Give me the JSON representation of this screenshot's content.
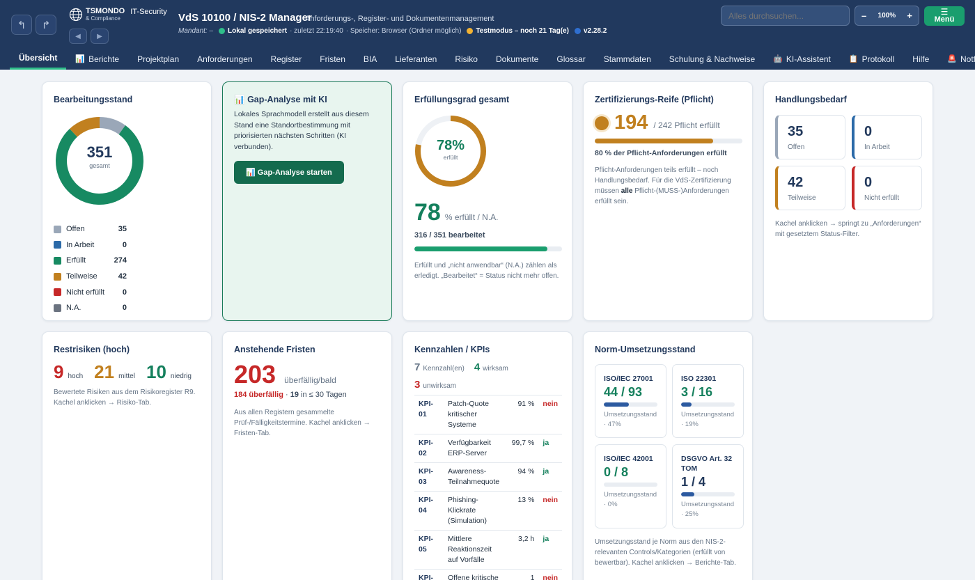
{
  "header": {
    "brand": "TSMONDO",
    "brand_sub": "& Compliance",
    "brand_suffix": "IT-Security",
    "app_title": "VdS 10100 / NIS-2 Manager",
    "app_subtitle": "Anforderungs-, Register- und Dokumentenmanagement",
    "mandant": "Mandant: –",
    "status_saved": "Lokal gespeichert",
    "status_last": "· zuletzt 22:19:40",
    "status_storage": "· Speicher: Browser (Ordner möglich)",
    "status_test": "Testmodus – noch 21 Tag(e)",
    "version": "v2.28.2",
    "search_placeholder": "Alles durchsuchen...",
    "zoom": "100%",
    "zoom_minus": "–",
    "zoom_plus": "+",
    "menu_icon": "☰",
    "menu_label": "Menü",
    "colors": {
      "bg": "#21395e",
      "saved": "#2fbe8a",
      "test": "#f2b233",
      "version": "#2f6fd0"
    }
  },
  "tabs": [
    {
      "label": "Übersicht",
      "icon": ""
    },
    {
      "label": "Berichte",
      "icon": "chart-icon"
    },
    {
      "label": "Projektplan",
      "icon": ""
    },
    {
      "label": "Anforderungen",
      "icon": ""
    },
    {
      "label": "Register",
      "icon": ""
    },
    {
      "label": "Fristen",
      "icon": ""
    },
    {
      "label": "BIA",
      "icon": ""
    },
    {
      "label": "Lieferanten",
      "icon": ""
    },
    {
      "label": "Risiko",
      "icon": ""
    },
    {
      "label": "Dokumente",
      "icon": ""
    },
    {
      "label": "Glossar",
      "icon": ""
    },
    {
      "label": "Stammdaten",
      "icon": ""
    },
    {
      "label": "Schulung & Nachweise",
      "icon": ""
    },
    {
      "label": "KI-Assistent",
      "icon": "robot-icon"
    },
    {
      "label": "Protokoll",
      "icon": "clipboard-icon"
    },
    {
      "label": "Hilfe",
      "icon": ""
    },
    {
      "label": "Notfall",
      "icon": "siren-icon"
    }
  ],
  "bearbeitung": {
    "title": "Bearbeitungsstand",
    "total": "351",
    "total_label": "gesamt",
    "items": [
      {
        "label": "Offen",
        "value": 35,
        "color": "#9aa7b8"
      },
      {
        "label": "In Arbeit",
        "value": 0,
        "color": "#2c6aa8"
      },
      {
        "label": "Erfüllt",
        "value": 274,
        "color": "#178a62"
      },
      {
        "label": "Teilweise",
        "value": 42,
        "color": "#c1801f"
      },
      {
        "label": "Nicht erfüllt",
        "value": 0,
        "color": "#c62828"
      },
      {
        "label": "N.A.",
        "value": 0,
        "color": "#6b7380"
      }
    ]
  },
  "gap": {
    "title": "Gap-Analyse mit KI",
    "text": "Lokales Sprachmodell erstellt aus diesem Stand eine Standortbestimmung mit priorisierten nächsten Schritten (KI verbunden).",
    "button": "Gap-Analyse starten"
  },
  "erfuellung": {
    "title": "Erfüllungsgrad gesamt",
    "percent": 78,
    "percent_label": "78%",
    "ring_label": "erfüllt",
    "big": "78",
    "big_suffix": "% erfüllt / N.A.",
    "processed": "316 / 351 bearbeitet",
    "processed_fraction": 0.9,
    "note": "Erfüllt und „nicht anwendbar“ (N.A.) zählen als erledigt. „Bearbeitet“ = Status nicht mehr offen."
  },
  "zert": {
    "title": "Zertifizierungs-Reife (Pflicht)",
    "value": "194",
    "of": "/ 242 Pflicht erfüllt",
    "fraction": 0.8,
    "pct_text": "80 % der Pflicht-Anforderungen erfüllt",
    "note_before": "Pflicht-Anforderungen teils erfüllt – noch Handlungsbedarf. Für die VdS-Zertifizierung müssen ",
    "note_bold": "alle",
    "note_after": " Pflicht-(MUSS-)Anforderungen erfüllt sein."
  },
  "handlung": {
    "title": "Handlungsbedarf",
    "tiles": [
      {
        "value": "35",
        "label": "Offen",
        "color": "#9aa7b8"
      },
      {
        "value": "0",
        "label": "In Arbeit",
        "color": "#2c6aa8"
      },
      {
        "value": "42",
        "label": "Teilweise",
        "color": "#c1801f"
      },
      {
        "value": "0",
        "label": "Nicht erfüllt",
        "color": "#c62828"
      }
    ],
    "note": "Kachel anklicken → springt zu „Anforderungen“ mit gesetztem Status-Filter."
  },
  "risiken": {
    "title": "Restrisiken (hoch)",
    "high": "9",
    "high_label": "hoch",
    "mid": "21",
    "mid_label": "mittel",
    "low": "10",
    "low_label": "niedrig",
    "note": "Bewertete Risiken aus dem Risikoregister R9. Kachel anklicken → Risiko-Tab."
  },
  "fristen": {
    "title": "Anstehende Fristen",
    "value": "203",
    "value_label": "überfällig/bald",
    "overdue": "184 überfällig",
    "sep": " · ",
    "soon": "19",
    "soon_label": " in ≤ 30 Tagen",
    "note": "Aus allen Registern gesammelte Prüf-/Fälligkeitstermine. Kachel anklicken → Fristen-Tab."
  },
  "kpis": {
    "title": "Kennzahlen / KPIs",
    "count": "7",
    "count_label": "Kennzahl(en)",
    "effective": "4",
    "effective_label": "wirksam",
    "ineffective": "3",
    "ineffective_label": "unwirksam",
    "rows": [
      {
        "id": "KPI-01",
        "name": "Patch-Quote kritischer Systeme",
        "value": "91 %",
        "ok": "nein"
      },
      {
        "id": "KPI-02",
        "name": "Verfügbarkeit ERP-Server",
        "value": "99,7 %",
        "ok": "ja"
      },
      {
        "id": "KPI-03",
        "name": "Awareness-Teilnahmequote",
        "value": "94 %",
        "ok": "ja"
      },
      {
        "id": "KPI-04",
        "name": "Phishing-Klickrate (Simulation)",
        "value": "13 %",
        "ok": "nein"
      },
      {
        "id": "KPI-05",
        "name": "Mittlere Reaktionszeit auf Vorfälle",
        "value": "3,2 h",
        "ok": "ja"
      },
      {
        "id": "KPI-06",
        "name": "Offene kritische Schwachstellen >",
        "value": "1",
        "ok": "nein"
      }
    ]
  },
  "norm": {
    "title": "Norm-Umsetzungsstand",
    "items": [
      {
        "name": "ISO/IEC 27001",
        "value": "44 / 93",
        "fraction": 0.47,
        "status": "Umsetzungsstand · 47%",
        "green": true
      },
      {
        "name": "ISO 22301",
        "value": "3 / 16",
        "fraction": 0.19,
        "status": "Umsetzungsstand · 19%",
        "green": true
      },
      {
        "name": "ISO/IEC 42001",
        "value": "0 / 8",
        "fraction": 0,
        "status": "Umsetzungsstand · 0%",
        "green": true
      },
      {
        "name": "DSGVO Art. 32 TOM",
        "value": "1 / 4",
        "fraction": 0.25,
        "status": "Umsetzungsstand · 25%",
        "green": false
      }
    ],
    "note": "Umsetzungsstand je Norm aus den NIS-2-relevanten Controls/Kategorien (erfüllt von bewertbar). Kachel anklicken → Berichte-Tab."
  }
}
